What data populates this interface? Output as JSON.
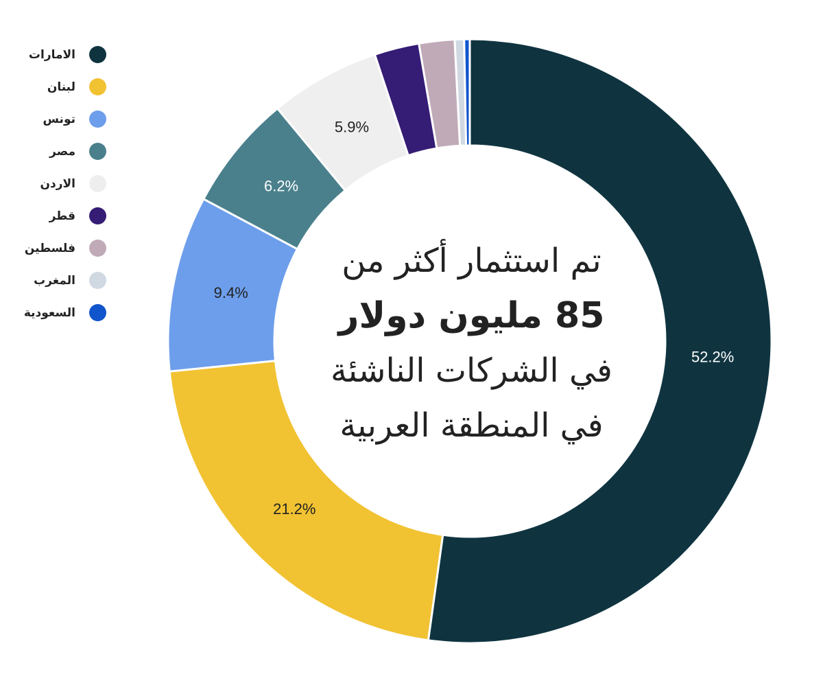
{
  "chart_data": {
    "type": "pie",
    "style": "donut",
    "categories": [
      "الامارات",
      "لبنان",
      "تونس",
      "مصر",
      "الاردن",
      "قطر",
      "فلسطين",
      "المغرب",
      "السعودية"
    ],
    "values": [
      52.2,
      21.2,
      9.4,
      6.2,
      5.9,
      2.4,
      1.9,
      0.5,
      0.3
    ],
    "data_labels": [
      "52.2%",
      "21.2%",
      "9.4%",
      "6.2%",
      "5.9%",
      "",
      "",
      "",
      ""
    ],
    "colors": [
      "#0f3440",
      "#f1c232",
      "#6d9eeb",
      "#4a808c",
      "#efefef",
      "#351c75",
      "#c0aab8",
      "#d0d8e2",
      "#1155cc"
    ],
    "label_colors": [
      "#ffffff",
      "#222222",
      "#222222",
      "#ffffff",
      "#222222",
      "#ffffff",
      "#222222",
      "#222222",
      "#ffffff"
    ],
    "legend_position": "top-left"
  },
  "center": {
    "line1": "تم استثمار أكثر من",
    "line2": "85 مليون دولار",
    "line3": "في الشركات الناشئة",
    "line4": "في المنطقة العربية"
  }
}
